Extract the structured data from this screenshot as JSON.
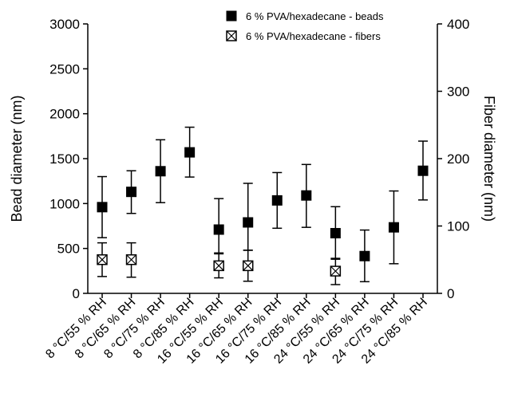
{
  "chart_data": {
    "type": "scatter",
    "categories": [
      "8 °C/55 % RH",
      "8 °C/65 % RH",
      "8 °C/75 % RH",
      "8 °C/85 % RH",
      "16 °C/55 % RH",
      "16 °C/65 % RH",
      "16 °C/75 % RH",
      "16 °C/85 % RH",
      "24 °C/55 % RH",
      "24 °C/65 % RH",
      "24 °C/75 % RH",
      "24 °C/85 % RH"
    ],
    "ylabel": "Bead diameter (nm)",
    "y2label": "Fiber diameter (nm)",
    "ylim": [
      0,
      3000
    ],
    "y2lim": [
      0,
      400
    ],
    "yticks": [
      0,
      500,
      1000,
      1500,
      2000,
      2500,
      3000
    ],
    "y2ticks": [
      0,
      100,
      200,
      300,
      400
    ],
    "legend_position": "top-right",
    "series": [
      {
        "name": "6 % PVA/hexadecane - beads",
        "axis": "left",
        "marker": "filled-square",
        "color": "#000000",
        "values": [
          960,
          1130,
          1360,
          1570,
          710,
          790,
          1035,
          1090,
          670,
          415,
          735,
          1365
        ],
        "error_low": [
          620,
          890,
          1010,
          1295,
          440,
          480,
          725,
          735,
          380,
          130,
          330,
          1040
        ],
        "error_high": [
          1300,
          1365,
          1710,
          1850,
          1055,
          1225,
          1345,
          1435,
          965,
          705,
          1140,
          1695
        ]
      },
      {
        "name": "6 % PVA/hexadecane - fibers",
        "axis": "right",
        "marker": "open-square-x",
        "color": "#000000",
        "values": [
          50,
          50,
          null,
          null,
          41,
          41,
          null,
          null,
          33,
          null,
          null,
          null
        ],
        "error_low": [
          25,
          24,
          null,
          null,
          23,
          18,
          null,
          null,
          13,
          null,
          null,
          null
        ],
        "error_high": [
          75,
          75,
          null,
          null,
          60,
          64,
          null,
          null,
          52,
          null,
          null,
          null
        ]
      }
    ]
  }
}
